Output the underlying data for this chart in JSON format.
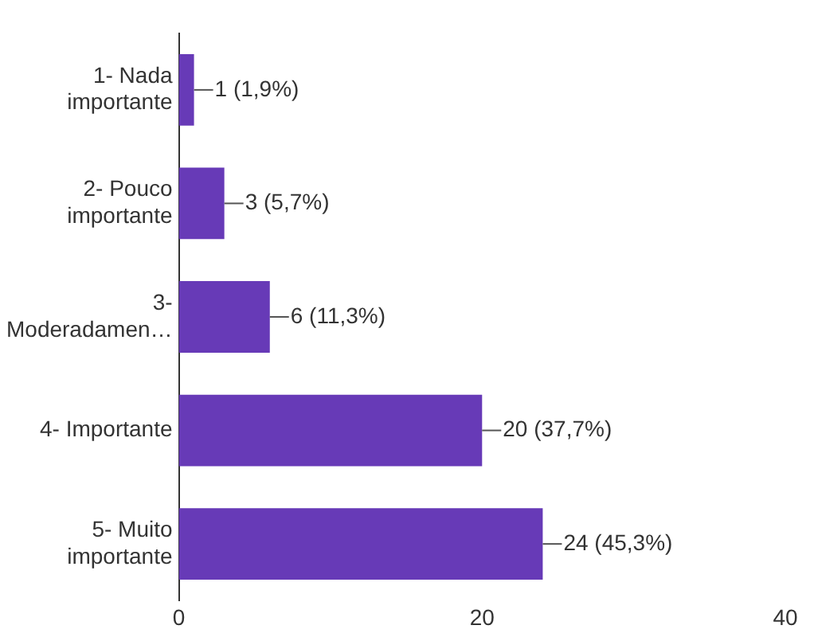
{
  "chart_data": {
    "type": "bar",
    "orientation": "horizontal",
    "categories": [
      "1- Nada\nimportante",
      "2- Pouco\nimportante",
      "3-\nModeradamen…",
      "4- Importante",
      "5- Muito\nimportante"
    ],
    "values": [
      1,
      3,
      6,
      20,
      24
    ],
    "value_labels": [
      "1 (1,9%)",
      "3 (5,7%)",
      "6 (11,3%)",
      "20 (37,7%)",
      "24 (45,3%)"
    ],
    "color": "#673ab7",
    "xlim": [
      0,
      40
    ],
    "xticks": [
      0,
      20,
      40
    ],
    "grid": false,
    "legend": false
  }
}
